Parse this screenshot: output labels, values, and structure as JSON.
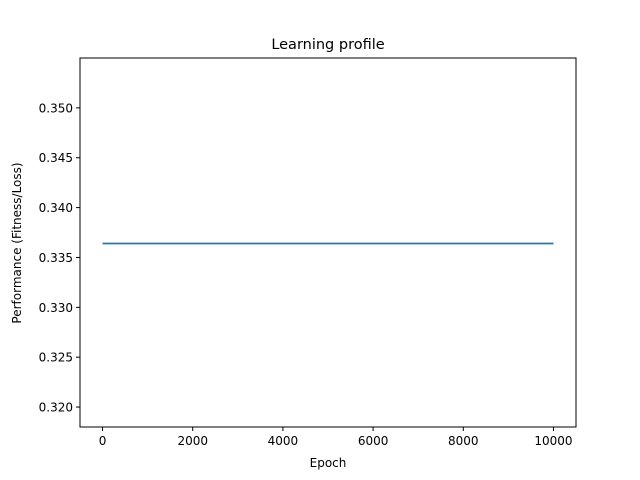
{
  "chart_data": {
    "type": "line",
    "title": "Learning profile",
    "xlabel": "Epoch",
    "ylabel": "Performance (Fitness/Loss)",
    "xlim": [
      -500,
      10500
    ],
    "ylim": [
      0.318,
      0.355
    ],
    "x_ticks": [
      0,
      2000,
      4000,
      6000,
      8000,
      10000
    ],
    "x_tick_labels": [
      "0",
      "2000",
      "4000",
      "6000",
      "8000",
      "10000"
    ],
    "y_ticks": [
      0.32,
      0.325,
      0.33,
      0.335,
      0.34,
      0.345,
      0.35
    ],
    "y_tick_labels": [
      "0.320",
      "0.325",
      "0.330",
      "0.335",
      "0.340",
      "0.345",
      "0.350"
    ],
    "grid": false,
    "series": [
      {
        "color": "#1f77b4",
        "x": [
          0,
          10000
        ],
        "y": [
          0.3364,
          0.3364
        ]
      }
    ]
  }
}
